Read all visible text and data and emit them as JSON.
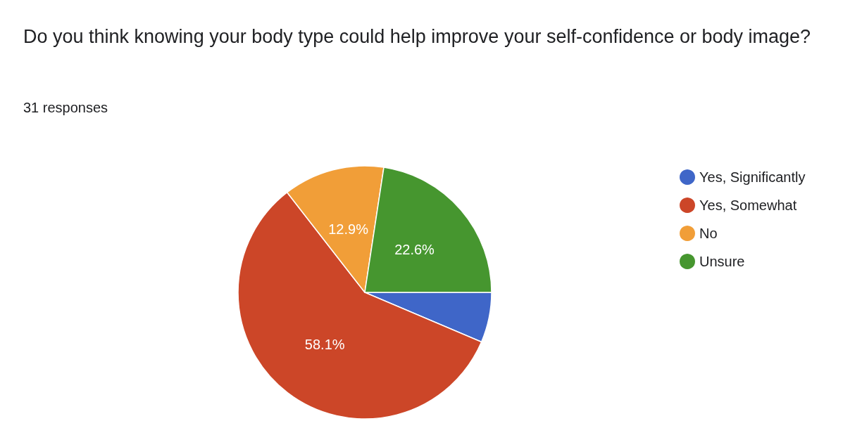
{
  "chart_data": {
    "type": "pie",
    "title": "Do you think knowing your body type could help improve your self-confidence or body image?",
    "subtitle": "31 responses",
    "categories": [
      "Yes, Significantly",
      "Yes, Somewhat",
      "No",
      "Unsure"
    ],
    "values": [
      6.4,
      58.1,
      12.9,
      22.6
    ],
    "colors": [
      "#3f66c8",
      "#cc4628",
      "#f19e38",
      "#46962f"
    ],
    "value_labels": [
      null,
      "58.1%",
      "12.9%",
      "22.6%"
    ],
    "legend": "right"
  }
}
